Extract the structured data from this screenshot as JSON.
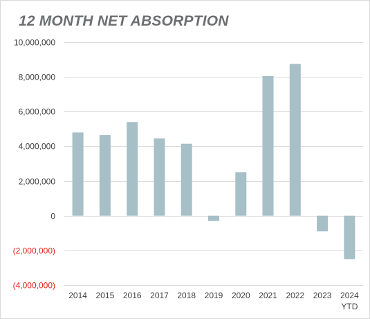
{
  "chart_data": {
    "type": "bar",
    "title": "12 MONTH NET ABSORPTION",
    "xlabel": "",
    "ylabel": "",
    "categories": [
      "2014",
      "2015",
      "2016",
      "2017",
      "2018",
      "2019",
      "2020",
      "2021",
      "2022",
      "2023",
      "2024"
    ],
    "category_sublabels": [
      "",
      "",
      "",
      "",
      "",
      "",
      "",
      "",
      "",
      "",
      "YTD"
    ],
    "values": [
      4800000,
      4650000,
      5400000,
      4450000,
      4150000,
      -300000,
      2500000,
      8050000,
      8750000,
      -900000,
      -2500000
    ],
    "ylim": [
      -4000000,
      10000000
    ],
    "yticks": [
      10000000,
      8000000,
      6000000,
      4000000,
      2000000,
      0,
      -2000000,
      -4000000
    ],
    "ytick_labels": [
      "10,000,000",
      "8,000,000",
      "6,000,000",
      "4,000,000",
      "2,000,000",
      "0",
      "(2,000,000)",
      "(4,000,000)"
    ],
    "grid": true,
    "legend": "none",
    "colors": {
      "bar": "#a7bfc6",
      "grid": "#d9d9d9",
      "negative_label": "#e0201b",
      "title": "#6d6e71"
    }
  }
}
